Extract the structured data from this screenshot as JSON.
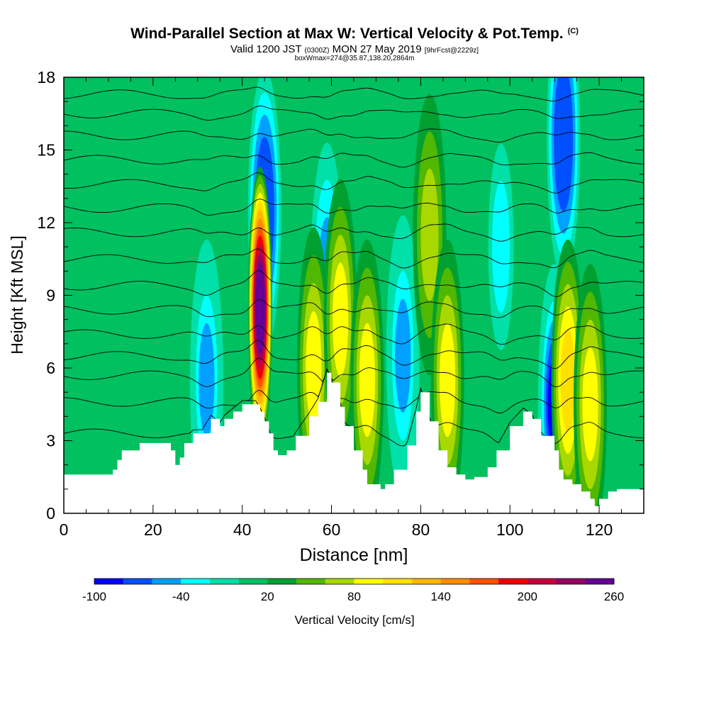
{
  "header": {
    "title": "Wind-Parallel Section at Max W: Vertical Velocity & Pot.Temp.",
    "title_mark": "(C)",
    "valid_a": "Valid 1200 JST",
    "valid_zulu": "(0300Z)",
    "valid_b": "MON 27 May 2019",
    "forecast": "[9hrFcst@2229z]",
    "boxinfo": "boxWmax=274@35.87,138.20,2864m"
  },
  "colorbar": {
    "label": "Vertical Velocity [cm/s]",
    "colors": [
      "#0000ff",
      "#0050ff",
      "#00a0ff",
      "#00ffff",
      "#00e0a8",
      "#00c060",
      "#00a030",
      "#50b800",
      "#a8d800",
      "#ffff00",
      "#ffe000",
      "#ffb800",
      "#ff8c00",
      "#ff5000",
      "#f00000",
      "#c8003c",
      "#960064",
      "#640096"
    ],
    "tick_labels": [
      "-100",
      "-40",
      "20",
      "80",
      "140",
      "200",
      "260"
    ]
  },
  "chart_data": {
    "type": "heatmap",
    "xlabel": "Distance [nm]",
    "ylabel": "Height [Kft MSL]",
    "xlim": [
      0,
      130
    ],
    "ylim": [
      0,
      18
    ],
    "xticks": [
      0,
      20,
      40,
      60,
      80,
      100,
      120
    ],
    "yticks": [
      0,
      3,
      6,
      9,
      12,
      15,
      18
    ],
    "background_value": 15,
    "terrain_profile": {
      "x": [
        0,
        10,
        11,
        12,
        13,
        17,
        21,
        24,
        25,
        26,
        27,
        29,
        31,
        33,
        35,
        36,
        38,
        40,
        43,
        44,
        45,
        46,
        47,
        48,
        50,
        52,
        55,
        57,
        59,
        60,
        62,
        63,
        65,
        67,
        68,
        71,
        72,
        74,
        77,
        79,
        80,
        82,
        84,
        86,
        88,
        90,
        92,
        95,
        97,
        100,
        103,
        105,
        107,
        110,
        111,
        112,
        114,
        116,
        118,
        119,
        120,
        122,
        124,
        126,
        128,
        130
      ],
      "y": [
        1.6,
        1.6,
        1.8,
        2.2,
        2.6,
        2.9,
        2.9,
        2.6,
        2.0,
        2.3,
        2.9,
        3.3,
        3.3,
        3.9,
        3.6,
        3.9,
        4.2,
        4.5,
        4.5,
        4.2,
        3.8,
        3.3,
        2.6,
        2.4,
        2.6,
        3.2,
        4.0,
        4.6,
        5.8,
        5.4,
        4.4,
        3.6,
        2.6,
        1.8,
        1.2,
        1.0,
        1.2,
        1.8,
        2.8,
        4.2,
        5.0,
        3.8,
        2.6,
        1.9,
        1.6,
        1.4,
        1.5,
        1.9,
        2.6,
        3.6,
        4.2,
        3.9,
        3.2,
        2.6,
        1.8,
        1.4,
        1.2,
        0.9,
        0.6,
        0.3,
        0.6,
        0.9,
        1.0,
        1.0,
        1.0,
        1.0
      ]
    },
    "updraft_cores": [
      {
        "x": 44,
        "y": 8.5,
        "peak": 274
      },
      {
        "x": 56,
        "y": 6.0,
        "peak": 90
      },
      {
        "x": 62,
        "y": 8.0,
        "peak": 85
      },
      {
        "x": 68,
        "y": 5.5,
        "peak": 90
      },
      {
        "x": 82,
        "y": 11.5,
        "peak": 70
      },
      {
        "x": 86,
        "y": 5.5,
        "peak": 85
      },
      {
        "x": 113,
        "y": 5.5,
        "peak": 110
      },
      {
        "x": 118,
        "y": 4.5,
        "peak": 85
      }
    ],
    "downdraft_cores": [
      {
        "x": 32,
        "y": 5.5,
        "peak": -55
      },
      {
        "x": 45,
        "y": 12.5,
        "peak": -80
      },
      {
        "x": 59,
        "y": 9.5,
        "peak": -45
      },
      {
        "x": 76,
        "y": 6.5,
        "peak": -50
      },
      {
        "x": 98,
        "y": 11.0,
        "peak": -30
      },
      {
        "x": 110,
        "y": 4.5,
        "peak": -90
      },
      {
        "x": 112,
        "y": 15.5,
        "peak": -80
      }
    ],
    "theta_contours": [
      {
        "label": "",
        "base": 3.3
      },
      {
        "label": "",
        "base": 4.6
      },
      {
        "label": "",
        "base": 5.7
      },
      {
        "label": "",
        "base": 6.5
      },
      {
        "label": "",
        "base": 7.4
      },
      {
        "label": "",
        "base": 8.4
      },
      {
        "label": "",
        "base": 9.4
      },
      {
        "label": "",
        "base": 10.5
      },
      {
        "label": "",
        "base": 11.6
      },
      {
        "label": "",
        "base": 12.6
      },
      {
        "label": "",
        "base": 13.6
      },
      {
        "label": "",
        "base": 14.6
      },
      {
        "label": "",
        "base": 15.6
      },
      {
        "label": "",
        "base": 16.5
      },
      {
        "label": "",
        "base": 17.3
      }
    ]
  }
}
